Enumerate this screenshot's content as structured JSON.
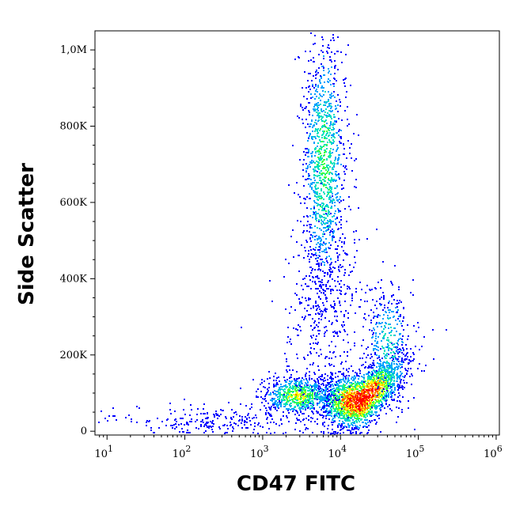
{
  "chart_data": {
    "type": "scatter",
    "subtype": "flow-cytometry density dot plot",
    "xlabel": "CD47 FITC",
    "ylabel": "Side Scatter",
    "x_scale": "log",
    "y_scale": "linear",
    "xlim": [
      7,
      1100000
    ],
    "ylim": [
      -10000,
      1050000
    ],
    "x_ticks": [
      {
        "value": 10,
        "base": "10",
        "exp": "1"
      },
      {
        "value": 100,
        "base": "10",
        "exp": "2"
      },
      {
        "value": 1000,
        "base": "10",
        "exp": "3"
      },
      {
        "value": 10000,
        "base": "10",
        "exp": "4"
      },
      {
        "value": 100000,
        "base": "10",
        "exp": "5"
      },
      {
        "value": 1000000,
        "base": "10",
        "exp": "6"
      }
    ],
    "y_ticks": [
      {
        "value": 0,
        "label": "0"
      },
      {
        "value": 200000,
        "label": "200K"
      },
      {
        "value": 400000,
        "label": "400K"
      },
      {
        "value": 600000,
        "label": "600K"
      },
      {
        "value": 800000,
        "label": "800K"
      },
      {
        "value": 1000000,
        "label": "1,0M"
      }
    ],
    "color_scale": [
      "#0000ff",
      "#00a0ff",
      "#00e0c0",
      "#40ff40",
      "#ffff00",
      "#ff8000",
      "#ff0000"
    ],
    "populations": [
      {
        "x_center": 18000,
        "x_spread_decades": 0.28,
        "y_center": 80000,
        "y_spread": 35000,
        "count": 2200,
        "peak_density": 1.0
      },
      {
        "x_center": 2800,
        "x_spread_decades": 0.22,
        "y_center": 95000,
        "y_spread": 25000,
        "count": 700,
        "peak_density": 0.6
      },
      {
        "x_center": 6000,
        "x_spread_decades": 0.14,
        "y_center": 700000,
        "y_spread": 180000,
        "count": 1200,
        "peak_density": 0.45
      },
      {
        "x_center": 6000,
        "x_spread_decades": 0.25,
        "y_center": 330000,
        "y_spread": 140000,
        "count": 400,
        "peak_density": 0.1
      },
      {
        "x_center": 40000,
        "x_spread_decades": 0.15,
        "y_center": 230000,
        "y_spread": 80000,
        "count": 350,
        "peak_density": 0.35
      },
      {
        "x_center": 300,
        "x_spread_decades": 0.7,
        "y_center": 25000,
        "y_spread": 20000,
        "count": 250,
        "peak_density": 0.05
      }
    ]
  }
}
